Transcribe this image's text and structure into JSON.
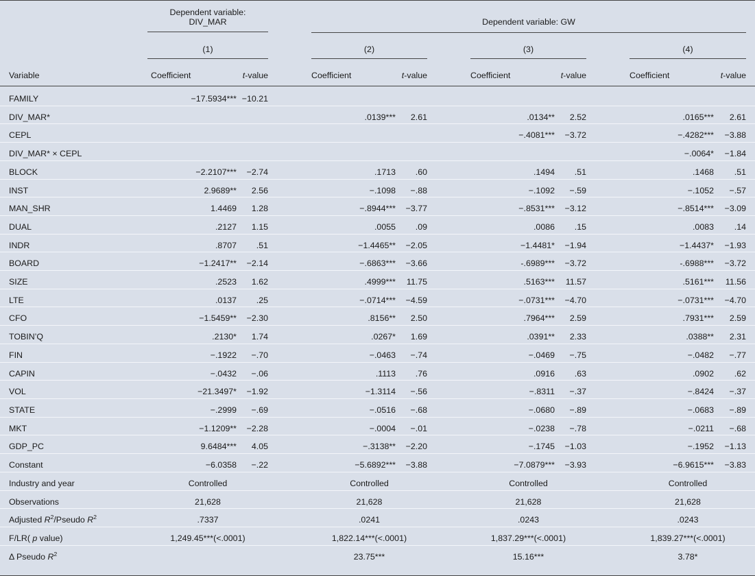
{
  "header": {
    "group1_line1": "Dependent variable:",
    "group1_line2": "DIV_MAR",
    "group2": "Dependent variable: GW",
    "models": [
      "(1)",
      "(2)",
      "(3)",
      "(4)"
    ],
    "variable_label": "Variable",
    "coef_label": "Coefficient",
    "tvalue_label": "t-value"
  },
  "rows": [
    {
      "var": "FAMILY",
      "c1": "−17.5934***",
      "t1": "−10.21",
      "c2": "",
      "t2": "",
      "c3": "",
      "t3": "",
      "c4": "",
      "t4": ""
    },
    {
      "var": "DIV_MAR*",
      "c1": "",
      "t1": "",
      "c2": ".0139***",
      "t2": "2.61",
      "c3": ".0134**",
      "t3": "2.52",
      "c4": ".0165***",
      "t4": "2.61"
    },
    {
      "var": "CEPL",
      "c1": "",
      "t1": "",
      "c2": "",
      "t2": "",
      "c3": "−.4081***",
      "t3": "−3.72",
      "c4": "−.4282***",
      "t4": "−3.88"
    },
    {
      "var": "DIV_MAR* × CEPL",
      "c1": "",
      "t1": "",
      "c2": "",
      "t2": "",
      "c3": "",
      "t3": "",
      "c4": "−.0064*",
      "t4": "−1.84"
    },
    {
      "var": "BLOCK",
      "c1": "−2.2107***",
      "t1": "−2.74",
      "c2": ".1713",
      "t2": ".60",
      "c3": ".1494",
      "t3": ".51",
      "c4": ".1468",
      "t4": ".51"
    },
    {
      "var": "INST",
      "c1": "2.9689**",
      "t1": "2.56",
      "c2": "−.1098",
      "t2": "−.88",
      "c3": "−.1092",
      "t3": "−.59",
      "c4": "−.1052",
      "t4": "−.57"
    },
    {
      "var": "MAN_SHR",
      "c1": "1.4469",
      "t1": "1.28",
      "c2": "−.8944***",
      "t2": "−3.77",
      "c3": "−.8531***",
      "t3": "−3.12",
      "c4": "−.8514***",
      "t4": "−3.09"
    },
    {
      "var": "DUAL",
      "c1": ".2127",
      "t1": "1.15",
      "c2": ".0055",
      "t2": ".09",
      "c3": ".0086",
      "t3": ".15",
      "c4": ".0083",
      "t4": ".14"
    },
    {
      "var": "INDR",
      "c1": ".8707",
      "t1": ".51",
      "c2": "−1.4465**",
      "t2": "−2.05",
      "c3": "−1.4481*",
      "t3": "−1.94",
      "c4": "−1.4437*",
      "t4": "−1.93"
    },
    {
      "var": "BOARD",
      "c1": "−1.2417**",
      "t1": "−2.14",
      "c2": "−.6863***",
      "t2": "−3.66",
      "c3": "-.6989***",
      "t3": "−3.72",
      "c4": "-.6988***",
      "t4": "−3.72"
    },
    {
      "var": "SIZE",
      "c1": ".2523",
      "t1": "1.62",
      "c2": ".4999***",
      "t2": "11.75",
      "c3": ".5163***",
      "t3": "11.57",
      "c4": ".5161***",
      "t4": "11.56"
    },
    {
      "var": "LTE",
      "c1": ".0137",
      "t1": ".25",
      "c2": "−.0714***",
      "t2": "−4.59",
      "c3": "−.0731***",
      "t3": "−4.70",
      "c4": "−.0731***",
      "t4": "−4.70"
    },
    {
      "var": "CFO",
      "c1": "−1.5459**",
      "t1": "−2.30",
      "c2": ".8156**",
      "t2": "2.50",
      "c3": ".7964***",
      "t3": "2.59",
      "c4": ".7931***",
      "t4": "2.59"
    },
    {
      "var": "TOBIN’Q",
      "c1": ".2130*",
      "t1": "1.74",
      "c2": ".0267*",
      "t2": "1.69",
      "c3": ".0391**",
      "t3": "2.33",
      "c4": ".0388**",
      "t4": "2.31"
    },
    {
      "var": "FIN",
      "c1": "−.1922",
      "t1": "−.70",
      "c2": "−.0463",
      "t2": "−.74",
      "c3": "−.0469",
      "t3": "−.75",
      "c4": "−.0482",
      "t4": "−.77"
    },
    {
      "var": "CAPIN",
      "c1": "−.0432",
      "t1": "−.06",
      "c2": ".1113",
      "t2": ".76",
      "c3": ".0916",
      "t3": ".63",
      "c4": ".0902",
      "t4": ".62"
    },
    {
      "var": "VOL",
      "c1": "−21.3497*",
      "t1": "−1.92",
      "c2": "−1.3114",
      "t2": "−.56",
      "c3": "−.8311",
      "t3": "−.37",
      "c4": "−.8424",
      "t4": "−.37"
    },
    {
      "var": "STATE",
      "c1": "−.2999",
      "t1": "−.69",
      "c2": "−.0516",
      "t2": "−.68",
      "c3": "−.0680",
      "t3": "−.89",
      "c4": "−.0683",
      "t4": "−.89"
    },
    {
      "var": "MKT",
      "c1": "−1.1209**",
      "t1": "−2.28",
      "c2": "−.0004",
      "t2": "−.01",
      "c3": "−.0238",
      "t3": "−.78",
      "c4": "−.0211",
      "t4": "−.68"
    },
    {
      "var": "GDP_PC",
      "c1": "9.6484***",
      "t1": "4.05",
      "c2": "−.3138**",
      "t2": "−2.20",
      "c3": "−.1745",
      "t3": "−1.03",
      "c4": "−.1952",
      "t4": "−1.13"
    },
    {
      "var": "Constant",
      "c1": "−6.0358",
      "t1": "−.22",
      "c2": "−5.6892***",
      "t2": "−3.88",
      "c3": "−7.0879***",
      "t3": "−3.93",
      "c4": "−6.9615***",
      "t4": "−3.83"
    }
  ],
  "summary": [
    {
      "label": "Industry and year",
      "v1": "Controlled",
      "v2": "Controlled",
      "v3": "Controlled",
      "v4": "Controlled"
    },
    {
      "label": "Observations",
      "v1": "21,628",
      "v2": "21,628",
      "v3": "21,628",
      "v4": "21,628"
    },
    {
      "label_pre": "Adjusted ",
      "label_r1": "R",
      "label_mid": "/Pseudo ",
      "label_r2": "R",
      "v1": ".7337",
      "v2": ".0241",
      "v3": ".0243",
      "v4": ".0243"
    },
    {
      "label_pre": "F/LR( ",
      "label_p": "p",
      "label_post": " value)",
      "v1": "1,249.45***(<.0001)",
      "v2": "1,822.14***(<.0001)",
      "v3": "1,837.29***(<.0001)",
      "v4": "1,839.27***(<.0001)"
    },
    {
      "label_pre": "Δ Pseudo ",
      "label_r": "R",
      "v1": "",
      "v2": "23.75***",
      "v3": "15.16***",
      "v4": "3.78*"
    }
  ]
}
